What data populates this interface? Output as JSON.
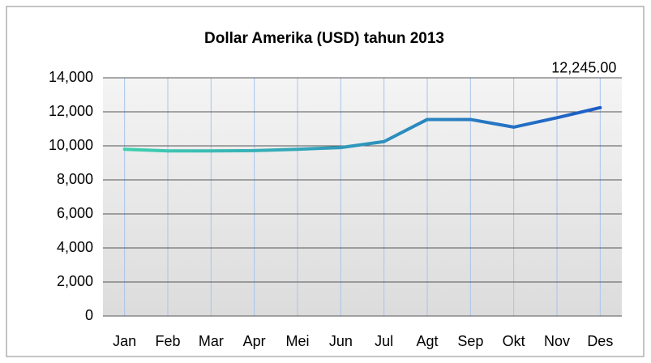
{
  "chart_data": {
    "type": "line",
    "title": "Dollar Amerika (USD) tahun 2013",
    "categories": [
      "Jan",
      "Feb",
      "Mar",
      "Apr",
      "Mei",
      "Jun",
      "Jul",
      "Agt",
      "Sep",
      "Okt",
      "Nov",
      "Des"
    ],
    "series": [
      {
        "color": [
          "#40d0b0",
          "#1e5cc8"
        ],
        "values": [
          9800,
          9700,
          9700,
          9720,
          9800,
          9900,
          10250,
          11550,
          11550,
          11100,
          11650,
          12245
        ],
        "value_labels": [
          null,
          null,
          null,
          null,
          null,
          null,
          null,
          null,
          null,
          null,
          null,
          "12,245.00"
        ]
      }
    ],
    "ylim": [
      0,
      14000
    ],
    "yticks": [
      0,
      {
        "value": 2000,
        "label": "2,000"
      },
      {
        "value": 4000,
        "label": "4,000"
      },
      {
        "value": 6000,
        "label": "6,000"
      },
      {
        "value": 8000,
        "label": "8,000"
      },
      {
        "value": 10000,
        "label": "10,000"
      },
      {
        "value": 12000,
        "label": "12,000"
      },
      {
        "value": 14000,
        "label": "14,000"
      }
    ],
    "grid": true
  }
}
